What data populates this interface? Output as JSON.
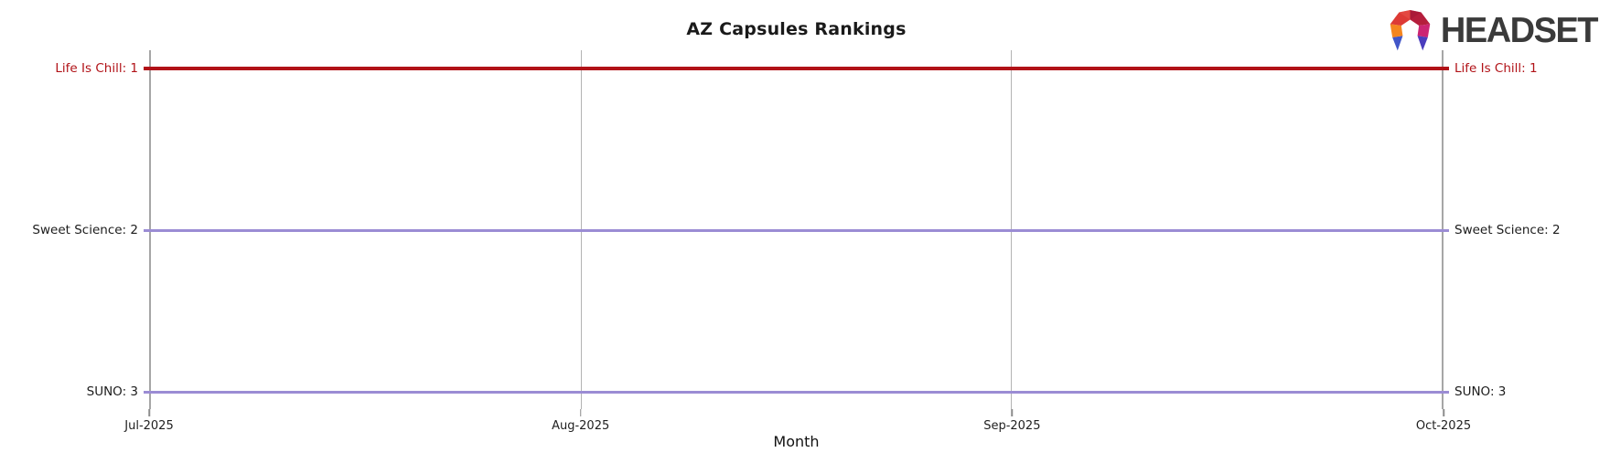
{
  "header": {
    "logo": {
      "brand_text": "HEADSET",
      "icon": "headset-logo-icon"
    }
  },
  "chart_data": {
    "type": "line",
    "title": "AZ Capsules Rankings",
    "xlabel": "Month",
    "ylabel": "",
    "categories": [
      "Jul-2025",
      "Aug-2025",
      "Sep-2025",
      "Oct-2025"
    ],
    "series": [
      {
        "name": "Life Is Chill",
        "label": "Life Is Chill: 1",
        "rank": 1,
        "values": [
          1,
          1,
          1,
          1
        ],
        "color": "#b11217",
        "label_color": "#b11217",
        "line_width": 4
      },
      {
        "name": "Sweet Science",
        "label": "Sweet Science: 2",
        "rank": 2,
        "values": [
          2,
          2,
          2,
          2
        ],
        "color": "#9b8cd4",
        "label_color": "#1c1c1c",
        "line_width": 3
      },
      {
        "name": "SUNO",
        "label": "SUNO: 3",
        "rank": 3,
        "values": [
          3,
          3,
          3,
          3
        ],
        "color": "#9b8cd4",
        "label_color": "#1c1c1c",
        "line_width": 3
      }
    ],
    "y_axis": {
      "inverted": true,
      "min": 1,
      "max": 3,
      "labels_on": "both-sides",
      "tick_labels_visible": false
    },
    "x_axis": {
      "ticks_visible": true,
      "range": [
        "Jul-2025",
        "Oct-2025"
      ]
    },
    "grid": {
      "vertical": true,
      "horizontal": false
    },
    "legend": "none",
    "colors": {
      "axis": "#a6a6a6",
      "gridline": "#b3b3b3",
      "tick": "#8c8c8c",
      "title": "#1a1a1a",
      "tick_label": "#1f1f1f",
      "background": "#ffffff"
    }
  }
}
